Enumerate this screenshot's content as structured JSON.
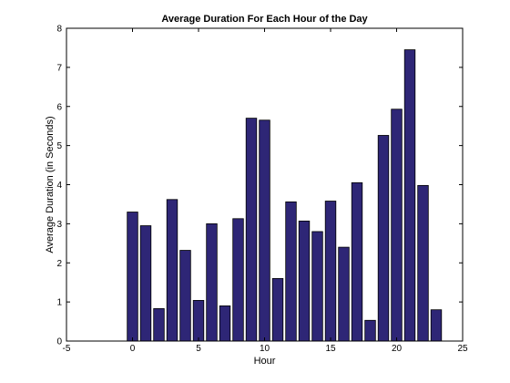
{
  "chart_data": {
    "type": "bar",
    "title": "Average Duration For Each Hour of the Day",
    "xlabel": "Hour",
    "ylabel": "Average Duration (in Seconds)",
    "xlim": [
      -5,
      25
    ],
    "ylim": [
      0,
      8
    ],
    "xticks": [
      -5,
      0,
      5,
      10,
      15,
      20,
      25
    ],
    "yticks": [
      0,
      1,
      2,
      3,
      4,
      5,
      6,
      7,
      8
    ],
    "grid": false,
    "legend": "none",
    "bar_color": "#2e2676",
    "edge_color": "#000000",
    "x": [
      0,
      1,
      2,
      3,
      4,
      5,
      6,
      7,
      8,
      9,
      10,
      11,
      12,
      13,
      14,
      15,
      16,
      17,
      18,
      19,
      20,
      21,
      22,
      23
    ],
    "values": [
      3.3,
      2.95,
      0.83,
      3.62,
      2.32,
      1.04,
      3.0,
      0.9,
      3.13,
      5.7,
      5.65,
      1.6,
      3.56,
      3.07,
      2.8,
      3.58,
      2.4,
      4.05,
      0.53,
      5.26,
      5.93,
      7.45,
      3.98,
      0.8
    ]
  }
}
